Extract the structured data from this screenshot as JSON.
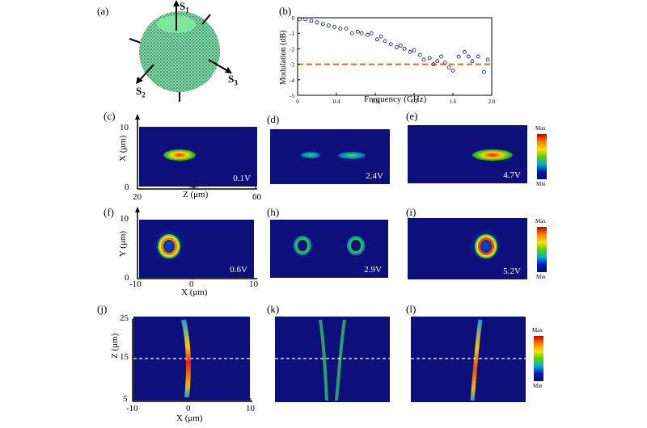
{
  "panel_a": {
    "label": "(a)",
    "axes": {
      "s1": "S",
      "s1_sub": "1",
      "s2": "S",
      "s2_sub": "2",
      "s3": "S",
      "s3_sub": "3"
    }
  },
  "panel_b": {
    "label": "(b)",
    "chart_data": {
      "type": "scatter",
      "xlabel": "Frequency (GHz)",
      "ylabel": "Modulation (dB)",
      "xlim": [
        0,
        2.0
      ],
      "ylim": [
        -5,
        0
      ],
      "xticks": [
        "0",
        "0.4",
        "0.8",
        "1.2",
        "1.6",
        "2.0"
      ],
      "yticks": [
        "0",
        "-1",
        "-2",
        "-3",
        "-4",
        "-5"
      ],
      "reference_line_y": -3,
      "reference_line_color": "#e06a1e",
      "marker_color": "#1f2a6b",
      "x": [
        0.02,
        0.08,
        0.14,
        0.2,
        0.26,
        0.32,
        0.38,
        0.44,
        0.5,
        0.56,
        0.62,
        0.66,
        0.72,
        0.76,
        0.82,
        0.86,
        0.9,
        0.96,
        1.02,
        1.06,
        1.1,
        1.16,
        1.2,
        1.26,
        1.3,
        1.36,
        1.4,
        1.44,
        1.48,
        1.52,
        1.56,
        1.6,
        1.66,
        1.72,
        1.76,
        1.8,
        1.86,
        1.92,
        1.96
      ],
      "y": [
        -0.1,
        -0.1,
        -0.2,
        -0.3,
        -0.4,
        -0.5,
        -0.6,
        -0.7,
        -0.7,
        -1.0,
        -0.9,
        -1.0,
        -1.1,
        -1.0,
        -1.4,
        -1.2,
        -1.5,
        -1.7,
        -1.9,
        -1.8,
        -2.0,
        -2.2,
        -2.1,
        -2.4,
        -2.7,
        -2.6,
        -3.0,
        -2.8,
        -2.5,
        -2.9,
        -3.2,
        -3.4,
        -2.5,
        -2.2,
        -2.5,
        -2.8,
        -2.5,
        -3.5,
        -2.7
      ]
    }
  },
  "row1": {
    "panels": [
      {
        "label": "(c)",
        "voltage": "0.1V"
      },
      {
        "label": "(d)",
        "voltage": "2.4V"
      },
      {
        "label": "(e)",
        "voltage": "4.7V"
      }
    ],
    "ylabel": "X (μm)",
    "yticks": [
      "10",
      "0"
    ],
    "xlabel": "Z (μm)",
    "xticks": [
      "20",
      "40",
      "60"
    ]
  },
  "row2": {
    "panels": [
      {
        "label": "(f)",
        "voltage": "0.6V"
      },
      {
        "label": "(h)",
        "voltage": "2.9V"
      },
      {
        "label": "(i)",
        "voltage": "5.2V"
      }
    ],
    "ylabel": "Y (μm)",
    "yticks": [
      "10",
      "0"
    ],
    "xlabel": "X (μm)",
    "xticks": [
      "-10",
      "0",
      "10"
    ]
  },
  "row3": {
    "panels": [
      {
        "label": "(j)"
      },
      {
        "label": "(k)"
      },
      {
        "label": "(l)"
      }
    ],
    "ylabel": "Z (μm)",
    "yticks": [
      "25",
      "15",
      "5"
    ],
    "xlabel": "X (μm)",
    "xticks": [
      "-10",
      "0",
      "10"
    ]
  },
  "colorbar": {
    "max": "Max",
    "min": "Min"
  }
}
